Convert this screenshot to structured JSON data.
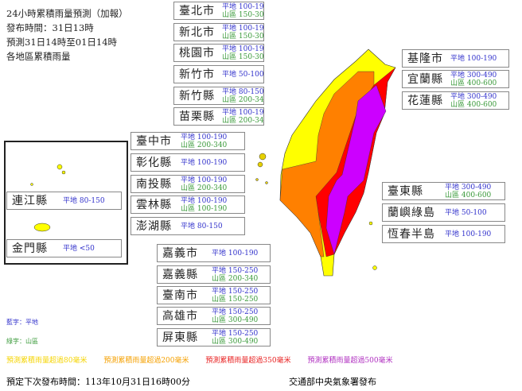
{
  "header": {
    "title": "24小時累積雨量預測（加報）",
    "issued": "發布時間：31日13時",
    "period": "預測31日14時至01日14時",
    "subtitle": "各地區累積雨量"
  },
  "labels": {
    "flat": "平地",
    "mtn": "山區"
  },
  "regions": [
    {
      "name": "臺北市",
      "flat": "100-190",
      "mtn": "150-300"
    },
    {
      "name": "新北市",
      "flat": "100-190",
      "mtn": "150-300"
    },
    {
      "name": "桃園市",
      "flat": "100-190",
      "mtn": "150-300"
    },
    {
      "name": "新竹市",
      "flat": "50-100"
    },
    {
      "name": "新竹縣",
      "flat": "80-150",
      "mtn": "200-340"
    },
    {
      "name": "苗栗縣",
      "flat": "100-190",
      "mtn": "200-340"
    },
    {
      "name": "基隆市",
      "flat": "100-190"
    },
    {
      "name": "宜蘭縣",
      "flat": "300-490",
      "mtn": "400-600"
    },
    {
      "name": "花蓮縣",
      "flat": "300-490",
      "mtn": "400-600"
    },
    {
      "name": "臺中市",
      "flat": "100-190",
      "mtn": "200-340"
    },
    {
      "name": "彰化縣",
      "flat": "100-190"
    },
    {
      "name": "南投縣",
      "flat": "100-190",
      "mtn": "200-340"
    },
    {
      "name": "雲林縣",
      "flat": "100-190",
      "mtn": "100-190"
    },
    {
      "name": "澎湖縣",
      "flat": "80-150"
    },
    {
      "name": "連江縣",
      "flat": "80-150"
    },
    {
      "name": "金門縣",
      "flat": "<50"
    },
    {
      "name": "嘉義市",
      "flat": "100-190"
    },
    {
      "name": "嘉義縣",
      "flat": "150-250",
      "mtn": "200-340"
    },
    {
      "name": "臺南市",
      "flat": "150-250",
      "mtn": "150-250"
    },
    {
      "name": "高雄市",
      "flat": "150-250",
      "mtn": "300-490"
    },
    {
      "name": "屏東縣",
      "flat": "150-250",
      "mtn": "300-490"
    },
    {
      "name": "臺東縣",
      "flat": "300-490",
      "mtn": "400-600"
    },
    {
      "name": "蘭嶼綠島",
      "flat": "50-100"
    },
    {
      "name": "恆春半島",
      "flat": "100-190"
    }
  ],
  "key": {
    "blue": "藍字：平地",
    "green": "綠字：山區"
  },
  "legend": [
    {
      "text": "預測累積雨量超過80毫米",
      "color": "#f5d400"
    },
    {
      "text": "預測累積雨量超過200毫米",
      "color": "#f59a00"
    },
    {
      "text": "預測累積雨量超過350毫米",
      "color": "#e82020"
    },
    {
      "text": "預測累積雨量超過500毫米",
      "color": "#b030c0"
    }
  ],
  "footer": {
    "next": "預定下次發布時間：113年10月31日16時00分",
    "publisher": "交通部中央氣象署發布"
  },
  "map_colors": {
    "yellow": "#ffff00",
    "orange": "#ff8000",
    "red": "#ff0000",
    "magenta": "#cc00ff"
  }
}
